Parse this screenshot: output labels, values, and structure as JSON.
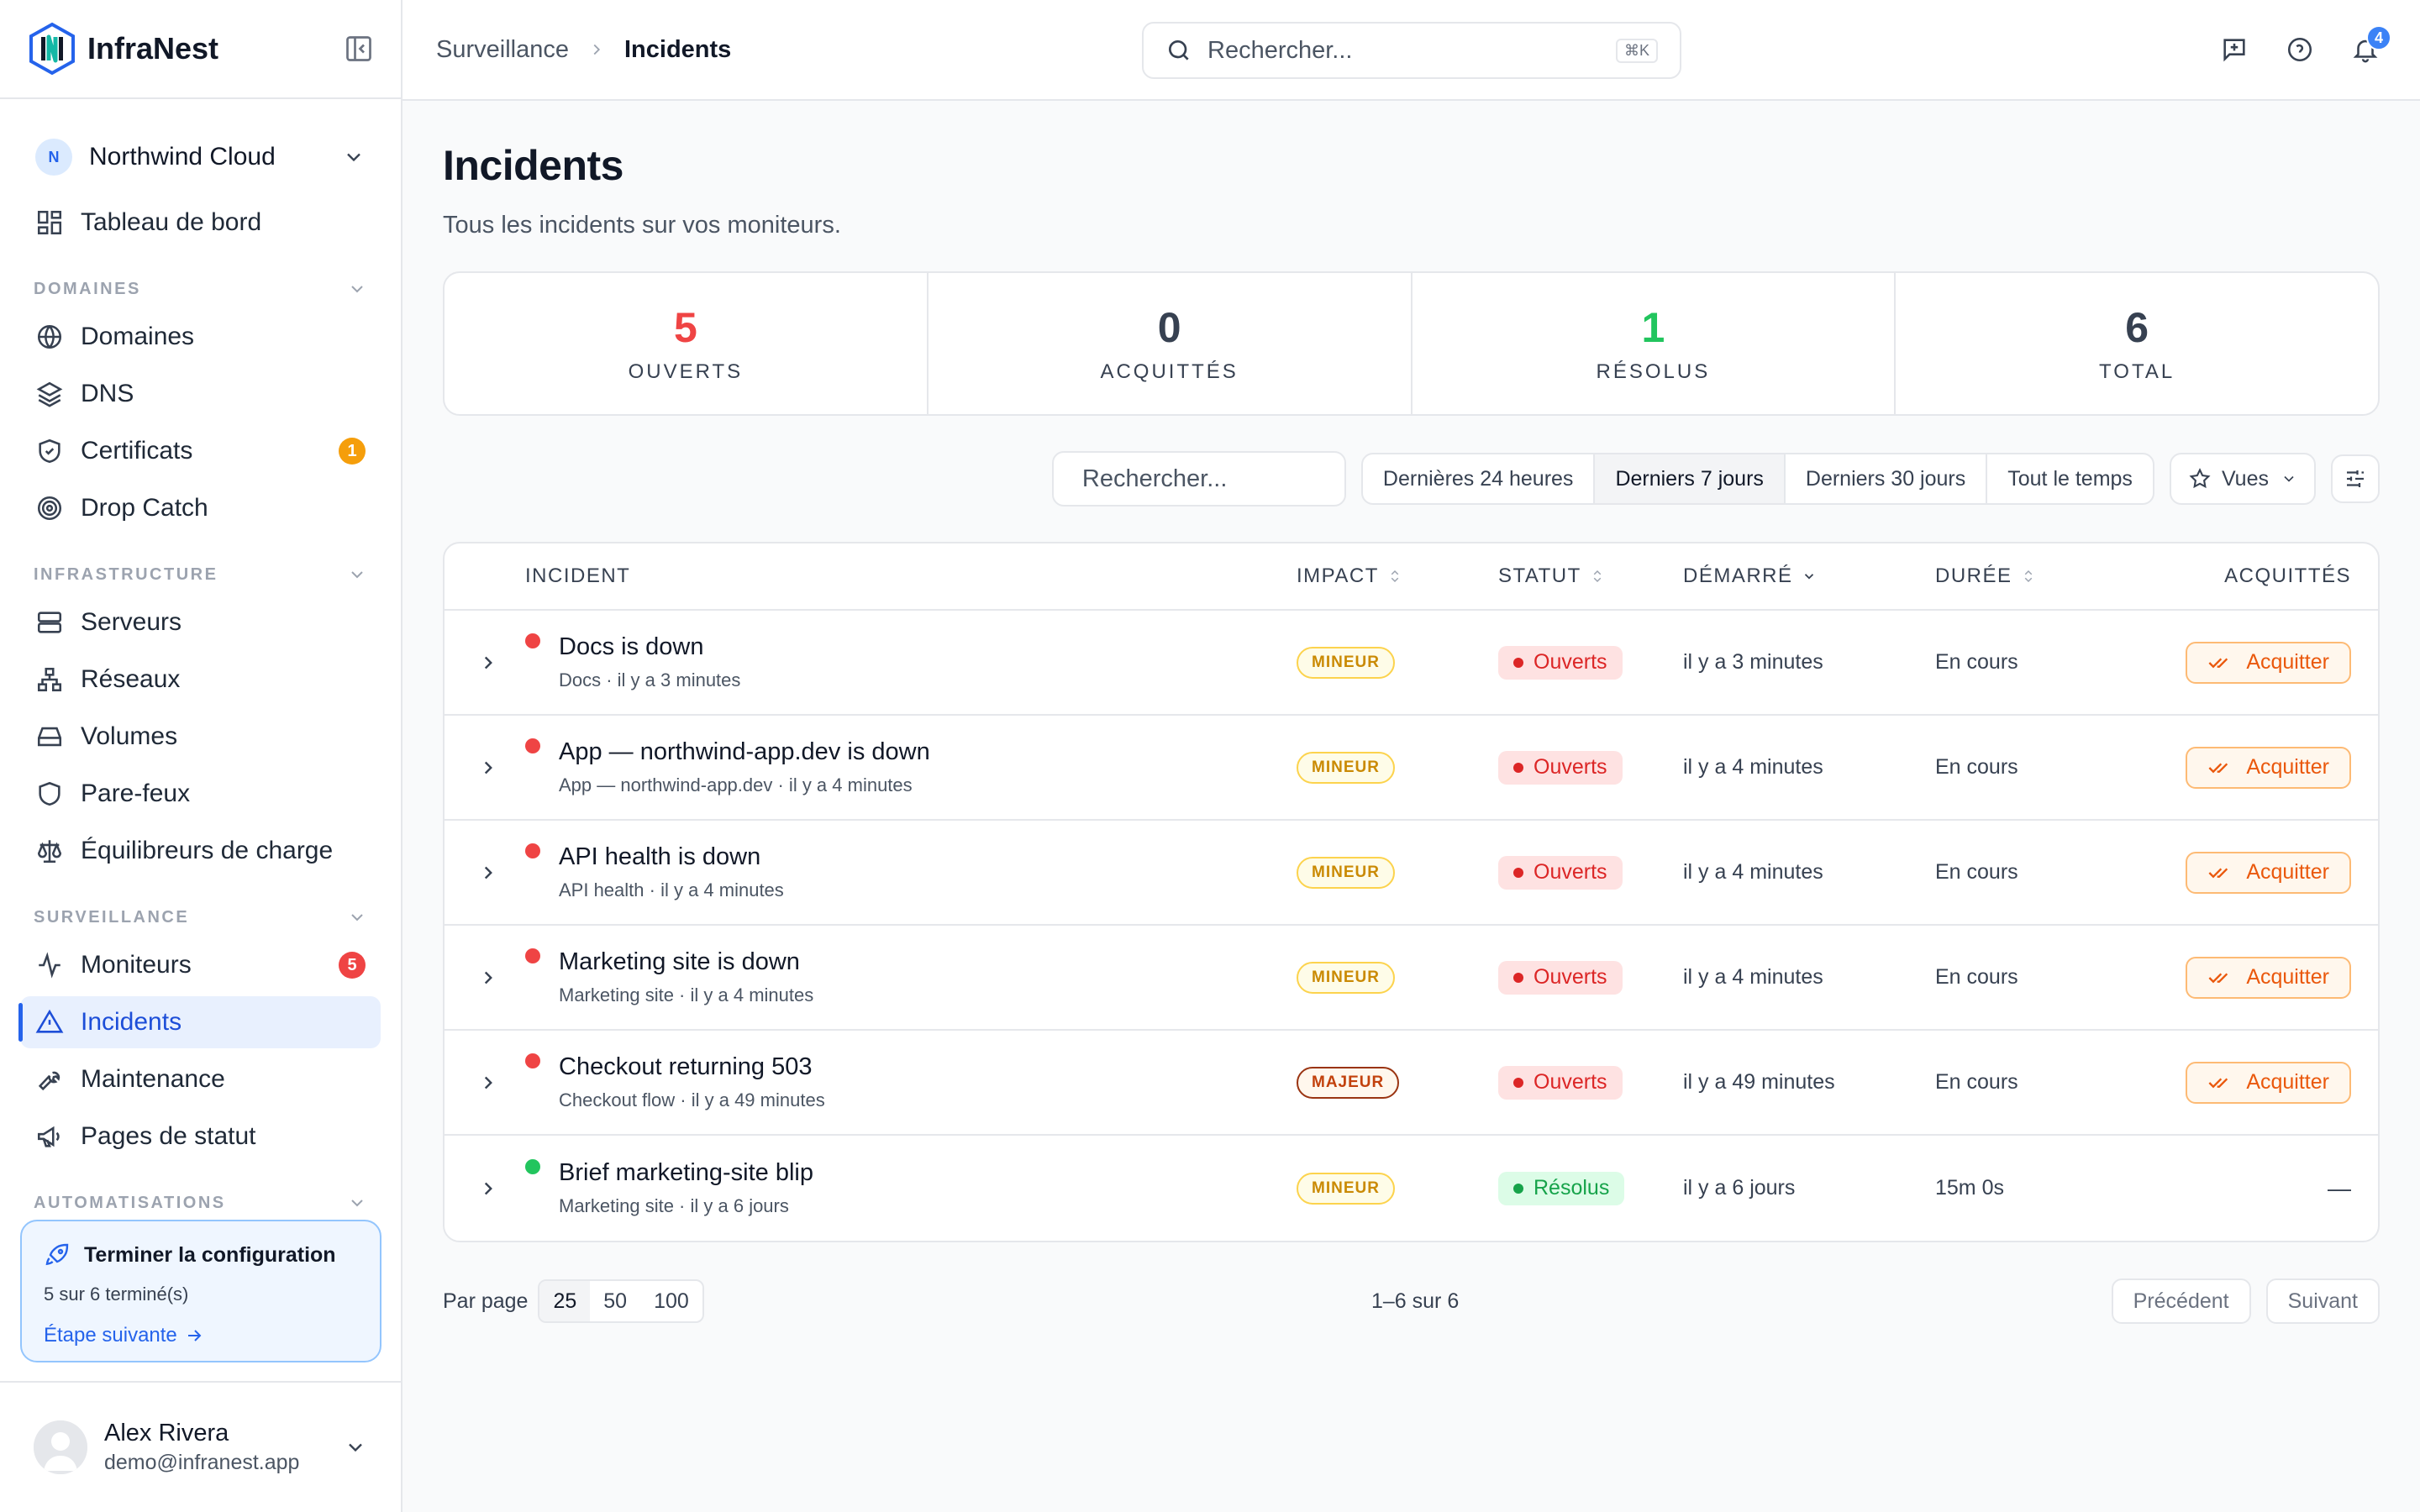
{
  "app": {
    "name": "InfraNest"
  },
  "org": {
    "initial": "N",
    "name": "Northwind Cloud"
  },
  "nav": {
    "dashboard": "Tableau de bord",
    "sections": {
      "domains": "DOMAINES",
      "infra": "INFRASTRUCTURE",
      "monitoring": "SURVEILLANCE",
      "automation": "AUTOMATISATIONS"
    },
    "items": {
      "domains": "Domaines",
      "dns": "DNS",
      "certificates": "Certificats",
      "certificates_badge": "1",
      "dropcatch": "Drop Catch",
      "servers": "Serveurs",
      "networks": "Réseaux",
      "volumes": "Volumes",
      "firewalls": "Pare-feux",
      "loadbalancers": "Équilibreurs de charge",
      "monitors": "Moniteurs",
      "monitors_badge": "5",
      "incidents": "Incidents",
      "maintenance": "Maintenance",
      "statuspages": "Pages de statut"
    }
  },
  "setup": {
    "title": "Terminer la configuration",
    "progress": "5 sur 6 terminé(s)",
    "next": "Étape suivante"
  },
  "user": {
    "name": "Alex Rivera",
    "email": "demo@infranest.app"
  },
  "breadcrumb": {
    "parent": "Surveillance",
    "current": "Incidents"
  },
  "search": {
    "placeholder": "Rechercher...",
    "shortcut": "⌘K"
  },
  "notifications": {
    "count": "4"
  },
  "page": {
    "title": "Incidents",
    "subtitle": "Tous les incidents sur vos moniteurs."
  },
  "stats": [
    {
      "value": "5",
      "label": "OUVERTS",
      "color": "#ef4444"
    },
    {
      "value": "0",
      "label": "ACQUITTÉS",
      "color": "#374151"
    },
    {
      "value": "1",
      "label": "RÉSOLUS",
      "color": "#22c55e"
    },
    {
      "value": "6",
      "label": "TOTAL",
      "color": "#374151"
    }
  ],
  "filters": {
    "search_placeholder": "Rechercher...",
    "ranges": [
      "Dernières 24 heures",
      "Derniers 7 jours",
      "Derniers 30 jours",
      "Tout le temps"
    ],
    "selected_range": "Derniers 7 jours",
    "views": "Vues"
  },
  "table": {
    "headers": {
      "incident": "INCIDENT",
      "impact": "IMPACT",
      "status": "STATUT",
      "started": "DÉMARRÉ",
      "duration": "DURÉE",
      "ack": "ACQUITTÉS"
    },
    "ack_label": "Acquitter",
    "rows": [
      {
        "title": "Docs is down",
        "sub": "Docs · il y a 3 minutes",
        "impact": "MINEUR",
        "status": "Ouverts",
        "started": "il y a 3 minutes",
        "duration": "En cours",
        "ack": "Acquitter"
      },
      {
        "title": "App — northwind-app.dev is down",
        "sub": "App — northwind-app.dev · il y a 4 minutes",
        "impact": "MINEUR",
        "status": "Ouverts",
        "started": "il y a 4 minutes",
        "duration": "En cours",
        "ack": "Acquitter"
      },
      {
        "title": "API health is down",
        "sub": "API health · il y a 4 minutes",
        "impact": "MINEUR",
        "status": "Ouverts",
        "started": "il y a 4 minutes",
        "duration": "En cours",
        "ack": "Acquitter"
      },
      {
        "title": "Marketing site is down",
        "sub": "Marketing site · il y a 4 minutes",
        "impact": "MINEUR",
        "status": "Ouverts",
        "started": "il y a 4 minutes",
        "duration": "En cours",
        "ack": "Acquitter"
      },
      {
        "title": "Checkout returning 503",
        "sub": "Checkout flow · il y a 49 minutes",
        "impact": "MAJEUR",
        "status": "Ouverts",
        "started": "il y a 49 minutes",
        "duration": "En cours",
        "ack": "Acquitter"
      },
      {
        "title": "Brief marketing-site blip",
        "sub": "Marketing site · il y a 6 jours",
        "impact": "MINEUR",
        "status": "Résolus",
        "started": "il y a 6 jours",
        "duration": "15m 0s",
        "ack": "—"
      }
    ]
  },
  "pagination": {
    "per_page_label": "Par page",
    "sizes": [
      "25",
      "50",
      "100"
    ],
    "selected": "25",
    "range": "1–6 sur 6",
    "prev": "Précédent",
    "next": "Suivant"
  }
}
